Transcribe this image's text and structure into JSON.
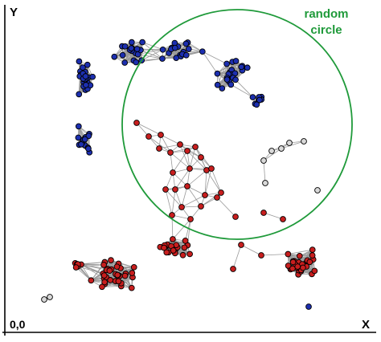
{
  "labels": {
    "y_axis": "Y",
    "x_axis": "X",
    "origin": "0,0",
    "circle_line1": "random",
    "circle_line2": "circle"
  },
  "colors": {
    "blue_node": "#1c2fb0",
    "red_node": "#c81e1e",
    "gray_node": "#d9d9d9",
    "edge": "#9a9a9a",
    "circle": "#1f9a3a",
    "circle_label": "#1f9a3a"
  }
}
